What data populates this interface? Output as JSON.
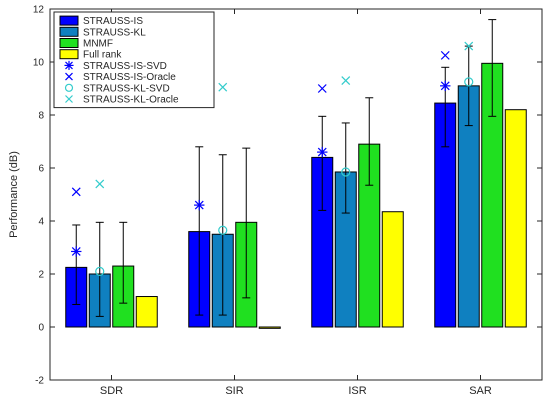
{
  "chart_data": {
    "type": "bar",
    "title": "",
    "xlabel": "",
    "ylabel": "Performance (dB)",
    "ylim": [
      -2,
      12
    ],
    "yticks": [
      -2,
      0,
      2,
      4,
      6,
      8,
      10,
      12
    ],
    "grid": false,
    "legend_position": "top-left",
    "categories": [
      "SDR",
      "SIR",
      "ISR",
      "SAR"
    ],
    "series": [
      {
        "name": "STRAUSS-IS",
        "color": "#0000ff",
        "values": [
          2.25,
          3.6,
          6.4,
          8.45
        ],
        "err_low": [
          0.85,
          0.45,
          4.4,
          6.8
        ],
        "err_high": [
          3.85,
          6.8,
          7.95,
          9.8
        ]
      },
      {
        "name": "STRAUSS-KL",
        "color": "#0f80c0",
        "values": [
          2.0,
          3.5,
          5.85,
          9.1
        ],
        "err_low": [
          0.4,
          0.45,
          4.3,
          7.6
        ],
        "err_high": [
          3.95,
          6.5,
          7.7,
          10.6
        ]
      },
      {
        "name": "MNMF",
        "color": "#20e020",
        "values": [
          2.3,
          3.95,
          6.9,
          9.95
        ],
        "err_low": [
          0.9,
          1.1,
          5.35,
          7.95
        ],
        "err_high": [
          3.95,
          6.75,
          8.65,
          11.6
        ]
      },
      {
        "name": "Full rank",
        "color": "#ffff00",
        "values": [
          1.15,
          -0.05,
          4.35,
          8.2
        ]
      }
    ],
    "markers": [
      {
        "name": "STRAUSS-IS-SVD",
        "symbol": "*",
        "color": "#0000ff",
        "values": [
          2.85,
          4.6,
          6.6,
          9.1
        ]
      },
      {
        "name": "STRAUSS-IS-Oracle",
        "symbol": "x",
        "color": "#0000ff",
        "values": [
          5.1,
          8.75,
          9.0,
          10.25
        ]
      },
      {
        "name": "STRAUSS-KL-SVD",
        "symbol": "o",
        "color": "#33cccc",
        "values": [
          2.1,
          3.65,
          5.85,
          9.25
        ]
      },
      {
        "name": "STRAUSS-KL-Oracle",
        "symbol": "x",
        "color": "#33cccc",
        "values": [
          5.4,
          9.05,
          9.3,
          10.6
        ]
      }
    ]
  }
}
